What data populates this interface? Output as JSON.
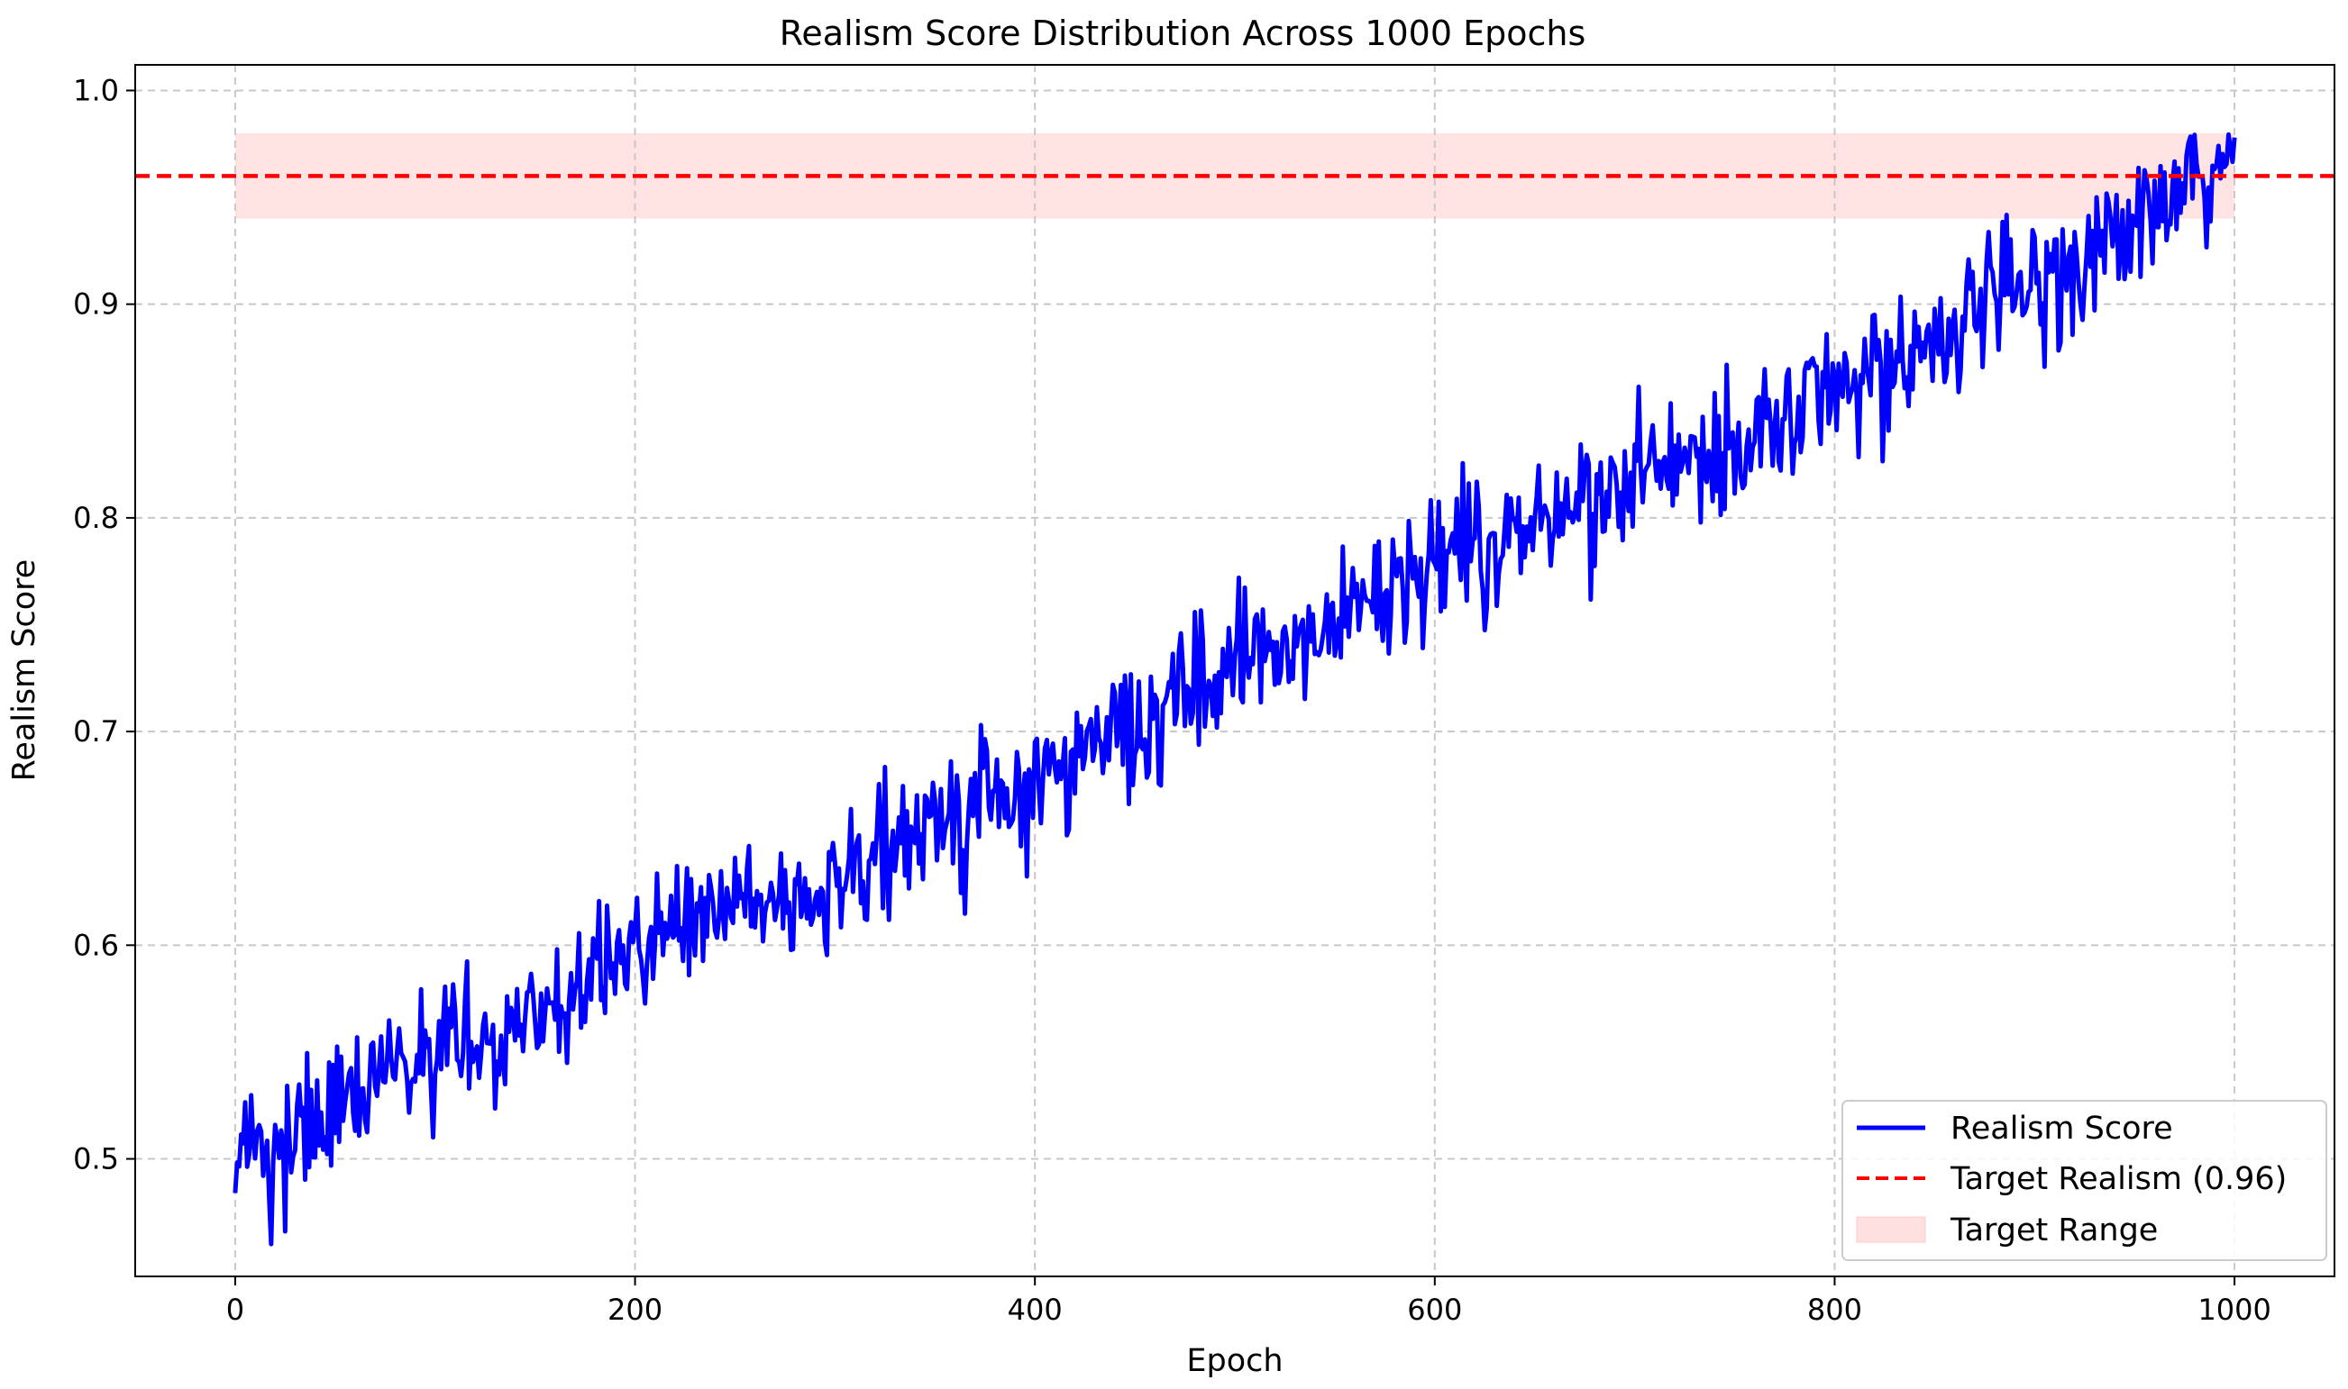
{
  "chart_data": {
    "type": "line",
    "title": "Realism Score Distribution Across 1000 Epochs",
    "xlabel": "Epoch",
    "ylabel": "Realism Score",
    "xlim": [
      -50,
      1050
    ],
    "ylim": [
      0.445,
      1.012
    ],
    "xticks": [
      0,
      200,
      400,
      600,
      800,
      1000
    ],
    "yticks": [
      0.5,
      0.6,
      0.7,
      0.8,
      0.9,
      1.0
    ],
    "xtick_labels": [
      "0",
      "200",
      "400",
      "600",
      "800",
      "1000"
    ],
    "ytick_labels": [
      "0.5",
      "0.6",
      "0.7",
      "0.8",
      "0.9",
      "1.0"
    ],
    "grid": true,
    "legend_position": "lower right",
    "legend": [
      "Realism Score",
      "Target Realism (0.96)",
      "Target Range"
    ],
    "series": [
      {
        "name": "Realism Score",
        "color": "#0000ff",
        "style": "solid",
        "x_start": 0,
        "x_end": 1000,
        "trend_points": [
          [
            0,
            0.5
          ],
          [
            50,
            0.52
          ],
          [
            100,
            0.55
          ],
          [
            150,
            0.565
          ],
          [
            200,
            0.6
          ],
          [
            250,
            0.615
          ],
          [
            300,
            0.63
          ],
          [
            350,
            0.655
          ],
          [
            400,
            0.675
          ],
          [
            450,
            0.7
          ],
          [
            500,
            0.735
          ],
          [
            550,
            0.75
          ],
          [
            600,
            0.78
          ],
          [
            650,
            0.795
          ],
          [
            700,
            0.82
          ],
          [
            750,
            0.835
          ],
          [
            800,
            0.86
          ],
          [
            850,
            0.885
          ],
          [
            900,
            0.91
          ],
          [
            950,
            0.935
          ],
          [
            1000,
            0.965
          ]
        ],
        "noise_amplitude": 0.025,
        "last_value": 0.978
      },
      {
        "name": "Target Realism (0.96)",
        "color": "#ff0000",
        "style": "dashed",
        "y": 0.96
      }
    ],
    "target_range": {
      "name": "Target Range",
      "color": "#ffe0e0",
      "x": [
        0,
        1000
      ],
      "y": [
        0.94,
        0.98
      ]
    },
    "colors": {
      "line": "#0000ff",
      "target": "#ff0000",
      "band_fill": "#ffe0e0",
      "grid": "#c8c8c8"
    }
  }
}
